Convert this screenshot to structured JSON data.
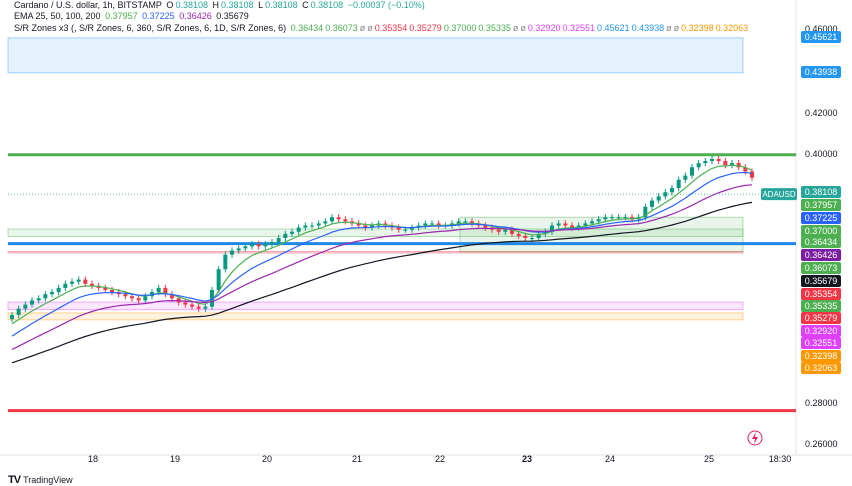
{
  "header": {
    "line1": "Cardano / U.S. dollar, 1h, BITSTAMP",
    "open_label": "O",
    "open": "0.38108",
    "high_label": "H",
    "high": "0.38108",
    "low_label": "L",
    "low": "0.38108",
    "close_label": "C",
    "close": "0.38108",
    "change": "−0.00037 (−0.10%)",
    "ema_label": "EMA 25, 50, 100, 200",
    "ema_values": [
      "0.37957",
      "0.37225",
      "0.36426",
      "0.35679"
    ],
    "sr_label": "S/R Zones x3 (, S/R Zones, 6, 360, S/R Zones, 6, 1D, S/R Zones, 6)",
    "sr_values": [
      "0.36434",
      "0.36073",
      "ø",
      "ø",
      "0.35354",
      "0.35279",
      "0.37000",
      "0.35335",
      "ø",
      "ø",
      "0.32920",
      "0.32551",
      "0.45621",
      "0.43938",
      "ø",
      "ø",
      "0.32398",
      "0.32063"
    ]
  },
  "price_axis": {
    "ticks": [
      "0.46000",
      "0.42000",
      "0.40000",
      "0.28000",
      "0.26000"
    ],
    "labels": [
      {
        "text": "0.45621",
        "color": "#2196f3"
      },
      {
        "text": "0.43938",
        "color": "#2196f3"
      },
      {
        "text": "0.38108",
        "color": "#26a69a"
      },
      {
        "text": "0.37957",
        "color": "#4caf50"
      },
      {
        "text": "0.37225",
        "color": "#2962ff"
      },
      {
        "text": "0.37000",
        "color": "#4caf50"
      },
      {
        "text": "0.36434",
        "color": "#4caf50"
      },
      {
        "text": "0.36426",
        "color": "#7b1fa2"
      },
      {
        "text": "0.36073",
        "color": "#4caf50"
      },
      {
        "text": "0.35679",
        "color": "#131722"
      },
      {
        "text": "0.35354",
        "color": "#f23645"
      },
      {
        "text": "0.35335",
        "color": "#4caf50"
      },
      {
        "text": "0.35279",
        "color": "#f23645"
      },
      {
        "text": "0.32920",
        "color": "#e040fb"
      },
      {
        "text": "0.32551",
        "color": "#e040fb"
      },
      {
        "text": "0.32398",
        "color": "#ff9800"
      },
      {
        "text": "0.32063",
        "color": "#ff9800"
      }
    ]
  },
  "symbol_tag": "ADAUSD",
  "time_axis": [
    "18",
    "19",
    "20",
    "21",
    "22",
    "23",
    "24",
    "25",
    "18:30"
  ],
  "footer": {
    "brand": "TradingView",
    "logo": "TV"
  },
  "chart_data": {
    "type": "candlestick",
    "title": "Cardano / U.S. dollar, 1h, BITSTAMP",
    "symbol": "ADAUSD",
    "x_labels": [
      "18",
      "19",
      "20",
      "21",
      "22",
      "23",
      "24",
      "25",
      "18:30"
    ],
    "last_price": 0.38108,
    "ema": [
      {
        "name": "EMA 25",
        "value": 0.37957,
        "color": "#4caf50"
      },
      {
        "name": "EMA 50",
        "value": 0.37225,
        "color": "#2962ff"
      },
      {
        "name": "EMA 100",
        "value": 0.36426,
        "color": "#9c27b0"
      },
      {
        "name": "EMA 200",
        "value": 0.35679,
        "color": "#131722"
      }
    ],
    "sr_zones": [
      {
        "top": 0.45621,
        "bottom": 0.43938,
        "color": "#2196f3"
      },
      {
        "top": 0.37,
        "bottom": 0.35335,
        "color": "#4caf50"
      },
      {
        "top": 0.36434,
        "bottom": 0.36073,
        "color": "#4caf50"
      },
      {
        "top": 0.35354,
        "bottom": 0.35279,
        "color": "#f23645"
      },
      {
        "top": 0.3292,
        "bottom": 0.32551,
        "color": "#e040fb"
      },
      {
        "top": 0.32398,
        "bottom": 0.32063,
        "color": "#ff9800"
      }
    ],
    "levels": [
      {
        "value": 0.4,
        "color": "#4caf50"
      },
      {
        "value": 0.277,
        "color": "#f23645"
      }
    ],
    "closes": [
      0.323,
      0.326,
      0.328,
      0.33,
      0.331,
      0.333,
      0.334,
      0.336,
      0.338,
      0.339,
      0.34,
      0.338,
      0.337,
      0.336,
      0.335,
      0.334,
      0.333,
      0.332,
      0.331,
      0.33,
      0.332,
      0.334,
      0.336,
      0.333,
      0.331,
      0.329,
      0.328,
      0.327,
      0.326,
      0.327,
      0.335,
      0.345,
      0.352,
      0.354,
      0.355,
      0.356,
      0.357,
      0.356,
      0.357,
      0.358,
      0.36,
      0.362,
      0.363,
      0.365,
      0.366,
      0.366,
      0.367,
      0.368,
      0.37,
      0.369,
      0.368,
      0.367,
      0.366,
      0.365,
      0.366,
      0.367,
      0.366,
      0.365,
      0.364,
      0.364,
      0.365,
      0.366,
      0.367,
      0.367,
      0.366,
      0.366,
      0.367,
      0.368,
      0.368,
      0.367,
      0.366,
      0.365,
      0.364,
      0.363,
      0.364,
      0.362,
      0.361,
      0.36,
      0.36,
      0.362,
      0.363,
      0.366,
      0.367,
      0.366,
      0.365,
      0.366,
      0.367,
      0.368,
      0.369,
      0.37,
      0.37,
      0.37,
      0.37,
      0.369,
      0.37,
      0.375,
      0.378,
      0.38,
      0.382,
      0.384,
      0.388,
      0.39,
      0.394,
      0.396,
      0.397,
      0.398,
      0.397,
      0.395,
      0.396,
      0.394,
      0.392,
      0.389
    ],
    "ylim": [
      0.255,
      0.462
    ]
  }
}
